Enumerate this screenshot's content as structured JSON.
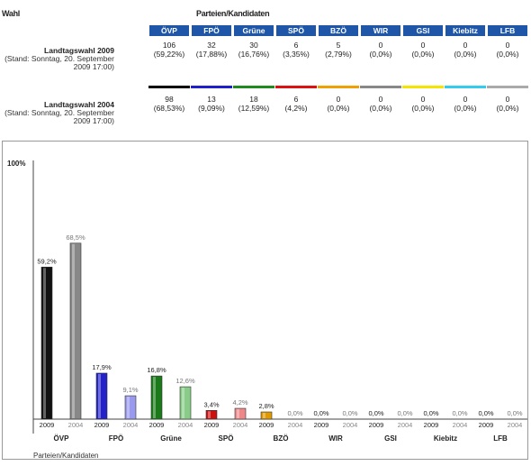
{
  "table": {
    "wahl_header": "Wahl",
    "parteien_header": "Parteien/Kandidaten",
    "parties": [
      "ÖVP",
      "FPÖ",
      "Grüne",
      "SPÖ",
      "BZÖ",
      "WIR",
      "GSI",
      "Kiebitz",
      "LFB"
    ],
    "party_colors": [
      "#000000",
      "#1f1fcc",
      "#1f8a1f",
      "#dd1111",
      "#f0a000",
      "#888888",
      "#f5e400",
      "#33ccee",
      "#aaaaaa"
    ],
    "rows": [
      {
        "title": "Landtagswahl 2009",
        "stand": "(Stand: Sonntag, 20. September 2009 17:00)",
        "votes": [
          "106",
          "32",
          "30",
          "6",
          "5",
          "0",
          "0",
          "0",
          "0"
        ],
        "pct": [
          "(59,22%)",
          "(17,88%)",
          "(16,76%)",
          "(3,35%)",
          "(2,79%)",
          "(0,0%)",
          "(0,0%)",
          "(0,0%)",
          "(0,0%)"
        ]
      },
      {
        "title": "Landtagswahl 2004",
        "stand": "(Stand: Sonntag, 20. September 2009 17:00)",
        "votes": [
          "98",
          "13",
          "18",
          "6",
          "0",
          "0",
          "0",
          "0",
          "0"
        ],
        "pct": [
          "(68,53%)",
          "(9,09%)",
          "(12,59%)",
          "(4,2%)",
          "(0,0%)",
          "(0,0%)",
          "(0,0%)",
          "(0,0%)",
          "(0,0%)"
        ]
      }
    ]
  },
  "chart_data": {
    "type": "bar",
    "ylabel_top": "100%",
    "xlabel": "Parteien/Kandidaten",
    "ylim": [
      0,
      100
    ],
    "categories": [
      "ÖVP",
      "FPÖ",
      "Grüne",
      "SPÖ",
      "BZÖ",
      "WIR",
      "GSI",
      "Kiebitz",
      "LFB"
    ],
    "series": [
      {
        "name": "2009",
        "values": [
          59.2,
          17.9,
          16.8,
          3.4,
          2.8,
          0.0,
          0.0,
          0.0,
          0.0
        ],
        "labels": [
          "59,2%",
          "17,9%",
          "16,8%",
          "3,4%",
          "2,8%",
          "0,0%",
          "0,0%",
          "0,0%",
          "0,0%"
        ]
      },
      {
        "name": "2004",
        "values": [
          68.5,
          9.1,
          12.6,
          4.2,
          0.0,
          0.0,
          0.0,
          0.0,
          0.0
        ],
        "labels": [
          "68,5%",
          "9,1%",
          "12,6%",
          "4,2%",
          "0,0%",
          "0,0%",
          "0,0%",
          "0,0%",
          "0,0%"
        ]
      }
    ],
    "colors_2009": [
      "#111111",
      "#2323c8",
      "#1a7a1a",
      "#cc1010",
      "#e09a00",
      "#777777",
      "#e6d400",
      "#22bbdd",
      "#999999"
    ],
    "colors_2004": [
      "#888888",
      "#9999ee",
      "#88cc88",
      "#ee8888",
      "#f5cc66",
      "#bbbbbb",
      "#f5ee88",
      "#99e6f5",
      "#cccccc"
    ]
  }
}
